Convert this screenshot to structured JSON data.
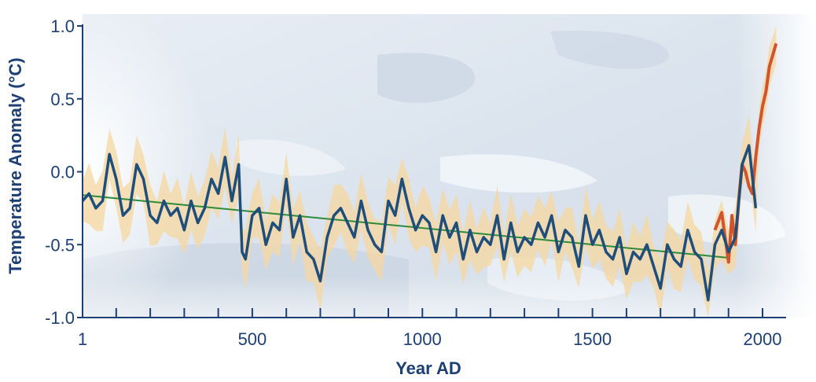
{
  "chart_data": {
    "type": "line",
    "title": "",
    "xlabel": "Year AD",
    "ylabel": "Temperature Anomaly (°C)",
    "xlim": [
      1,
      2060
    ],
    "ylim": [
      -1.0,
      1.0
    ],
    "x_ticks": [
      1,
      500,
      1000,
      1500,
      2000
    ],
    "x_tick_labels": [
      "1",
      "500",
      "1000",
      "1500",
      "2000"
    ],
    "x_minor_ticks": [
      100,
      200,
      300,
      400,
      600,
      700,
      800,
      900,
      1100,
      1200,
      1300,
      1400,
      1600,
      1700,
      1800,
      1900
    ],
    "y_ticks": [
      1.0,
      0.5,
      0.0,
      -0.5,
      -1.0
    ],
    "y_tick_labels": [
      "1.0",
      "0.5",
      "0.0",
      "-0.5",
      "-1.0"
    ],
    "grid": false,
    "background": "sea-ice photograph",
    "colors": {
      "axis": "#1d3f73",
      "reconstruction": "#1f4e7a",
      "instrumental": "#d0552c",
      "uncertainty_band": "#f6d7a0",
      "trend": "#2e8b3a"
    },
    "series": [
      {
        "role": "reconstruction",
        "x": [
          1,
          20,
          40,
          60,
          80,
          100,
          120,
          140,
          160,
          180,
          200,
          220,
          240,
          260,
          280,
          300,
          320,
          340,
          360,
          380,
          400,
          420,
          440,
          460,
          470,
          480,
          500,
          520,
          540,
          560,
          580,
          600,
          620,
          640,
          660,
          680,
          700,
          720,
          740,
          760,
          780,
          800,
          820,
          840,
          860,
          880,
          900,
          920,
          940,
          960,
          980,
          1000,
          1020,
          1040,
          1060,
          1080,
          1100,
          1120,
          1140,
          1160,
          1180,
          1200,
          1220,
          1240,
          1260,
          1280,
          1300,
          1320,
          1340,
          1360,
          1380,
          1400,
          1420,
          1440,
          1460,
          1480,
          1500,
          1520,
          1540,
          1560,
          1580,
          1600,
          1620,
          1640,
          1660,
          1680,
          1700,
          1720,
          1740,
          1760,
          1780,
          1800,
          1820,
          1840,
          1860,
          1880,
          1900,
          1920,
          1940,
          1960,
          1980
        ],
        "y": [
          -0.2,
          -0.15,
          -0.25,
          -0.2,
          0.12,
          -0.05,
          -0.3,
          -0.25,
          0.05,
          -0.05,
          -0.3,
          -0.35,
          -0.2,
          -0.3,
          -0.25,
          -0.4,
          -0.2,
          -0.35,
          -0.25,
          -0.05,
          -0.15,
          0.1,
          -0.2,
          0.05,
          -0.55,
          -0.6,
          -0.3,
          -0.25,
          -0.5,
          -0.35,
          -0.4,
          -0.05,
          -0.45,
          -0.3,
          -0.55,
          -0.6,
          -0.75,
          -0.45,
          -0.3,
          -0.25,
          -0.35,
          -0.45,
          -0.2,
          -0.4,
          -0.5,
          -0.55,
          -0.2,
          -0.3,
          -0.05,
          -0.25,
          -0.4,
          -0.3,
          -0.35,
          -0.55,
          -0.3,
          -0.45,
          -0.35,
          -0.6,
          -0.4,
          -0.55,
          -0.45,
          -0.5,
          -0.3,
          -0.6,
          -0.35,
          -0.55,
          -0.45,
          -0.5,
          -0.35,
          -0.45,
          -0.3,
          -0.55,
          -0.4,
          -0.45,
          -0.65,
          -0.3,
          -0.5,
          -0.4,
          -0.55,
          -0.6,
          -0.45,
          -0.7,
          -0.55,
          -0.6,
          -0.5,
          -0.65,
          -0.8,
          -0.5,
          -0.6,
          -0.65,
          -0.4,
          -0.55,
          -0.6,
          -0.88,
          -0.5,
          -0.4,
          -0.55,
          -0.45,
          0.05,
          0.18,
          -0.25
        ]
      },
      {
        "role": "instrumental",
        "x": [
          1860,
          1880,
          1900,
          1910,
          1920,
          1930,
          1940,
          1950,
          1960,
          1970,
          1980,
          1990,
          2000,
          2010,
          2020,
          2040
        ],
        "y": [
          -0.4,
          -0.28,
          -0.62,
          -0.3,
          -0.5,
          -0.2,
          0.05,
          0.0,
          -0.1,
          -0.15,
          0.1,
          0.3,
          0.45,
          0.55,
          0.72,
          0.88
        ]
      },
      {
        "role": "trend",
        "x": [
          1,
          1900
        ],
        "y": [
          -0.16,
          -0.59
        ]
      }
    ]
  }
}
